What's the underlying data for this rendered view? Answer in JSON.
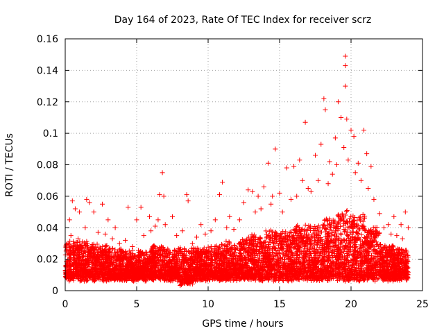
{
  "chart_data": {
    "type": "scatter",
    "title": "Day 164 of 2023, Rate Of TEC Index for receiver scrz",
    "xlabel": "GPS time / hours",
    "ylabel": "ROTI / TECUs",
    "xlim": [
      0,
      25
    ],
    "ylim": [
      0,
      0.16
    ],
    "xticks": [
      0,
      5,
      10,
      15,
      20,
      25
    ],
    "yticks": [
      0,
      0.02,
      0.04,
      0.06,
      0.08,
      0.1,
      0.12,
      0.14,
      0.16
    ],
    "xtick_labels": [
      "0",
      "5",
      "10",
      "15",
      "20",
      "25"
    ],
    "ytick_labels": [
      "0",
      "0.02",
      "0.04",
      "0.06",
      "0.08",
      "0.1",
      "0.12",
      "0.14",
      "0.16"
    ],
    "grid": true,
    "marker": "+",
    "marker_color": "#ff0000",
    "series": [
      {
        "name": "ROTI",
        "points": [
          [
            0.3,
            0.045
          ],
          [
            0.5,
            0.057
          ],
          [
            0.7,
            0.052
          ],
          [
            1.0,
            0.05
          ],
          [
            1.5,
            0.058
          ],
          [
            1.7,
            0.056
          ],
          [
            2.0,
            0.05
          ],
          [
            2.6,
            0.055
          ],
          [
            3.0,
            0.045
          ],
          [
            3.5,
            0.04
          ],
          [
            4.4,
            0.053
          ],
          [
            5.0,
            0.045
          ],
          [
            5.3,
            0.053
          ],
          [
            5.9,
            0.047
          ],
          [
            6.3,
            0.041
          ],
          [
            6.6,
            0.061
          ],
          [
            6.8,
            0.075
          ],
          [
            6.9,
            0.06
          ],
          [
            7.5,
            0.047
          ],
          [
            8.5,
            0.061
          ],
          [
            8.6,
            0.057
          ],
          [
            9.5,
            0.042
          ],
          [
            10.5,
            0.045
          ],
          [
            10.8,
            0.061
          ],
          [
            11.0,
            0.069
          ],
          [
            11.5,
            0.047
          ],
          [
            12.5,
            0.056
          ],
          [
            12.8,
            0.064
          ],
          [
            13.1,
            0.063
          ],
          [
            13.5,
            0.06
          ],
          [
            13.9,
            0.066
          ],
          [
            14.2,
            0.081
          ],
          [
            14.5,
            0.06
          ],
          [
            14.7,
            0.09
          ],
          [
            15.0,
            0.062
          ],
          [
            15.5,
            0.078
          ],
          [
            16.0,
            0.079
          ],
          [
            16.4,
            0.083
          ],
          [
            16.6,
            0.07
          ],
          [
            16.8,
            0.107
          ],
          [
            17.2,
            0.063
          ],
          [
            17.5,
            0.086
          ],
          [
            17.9,
            0.093
          ],
          [
            18.1,
            0.122
          ],
          [
            18.2,
            0.115
          ],
          [
            18.5,
            0.082
          ],
          [
            18.9,
            0.097
          ],
          [
            19.1,
            0.12
          ],
          [
            19.3,
            0.11
          ],
          [
            19.5,
            0.091
          ],
          [
            19.6,
            0.149
          ],
          [
            19.6,
            0.143
          ],
          [
            19.6,
            0.13
          ],
          [
            19.7,
            0.109
          ],
          [
            20.0,
            0.102
          ],
          [
            20.2,
            0.098
          ],
          [
            20.5,
            0.081
          ],
          [
            20.9,
            0.102
          ],
          [
            21.1,
            0.087
          ],
          [
            21.4,
            0.079
          ],
          [
            22.0,
            0.049
          ],
          [
            22.6,
            0.042
          ],
          [
            23.0,
            0.047
          ],
          [
            23.5,
            0.042
          ],
          [
            23.8,
            0.05
          ],
          [
            24.0,
            0.04
          ],
          [
            0.2,
            0.03
          ],
          [
            0.4,
            0.035
          ],
          [
            0.6,
            0.028
          ],
          [
            0.9,
            0.033
          ],
          [
            1.2,
            0.031
          ],
          [
            1.4,
            0.04
          ],
          [
            2.3,
            0.037
          ],
          [
            2.8,
            0.036
          ],
          [
            3.3,
            0.033
          ],
          [
            3.8,
            0.03
          ],
          [
            4.2,
            0.032
          ],
          [
            4.7,
            0.028
          ],
          [
            5.5,
            0.035
          ],
          [
            6.0,
            0.038
          ],
          [
            6.5,
            0.045
          ],
          [
            7.0,
            0.042
          ],
          [
            7.8,
            0.035
          ],
          [
            8.2,
            0.038
          ],
          [
            8.9,
            0.03
          ],
          [
            9.2,
            0.034
          ],
          [
            9.8,
            0.036
          ],
          [
            10.2,
            0.038
          ],
          [
            11.3,
            0.04
          ],
          [
            11.8,
            0.039
          ],
          [
            12.2,
            0.045
          ],
          [
            13.3,
            0.05
          ],
          [
            13.7,
            0.052
          ],
          [
            14.4,
            0.055
          ],
          [
            15.2,
            0.05
          ],
          [
            15.8,
            0.058
          ],
          [
            16.2,
            0.06
          ],
          [
            17.0,
            0.065
          ],
          [
            17.7,
            0.07
          ],
          [
            18.4,
            0.068
          ],
          [
            18.7,
            0.074
          ],
          [
            19.0,
            0.08
          ],
          [
            19.8,
            0.083
          ],
          [
            20.3,
            0.075
          ],
          [
            20.7,
            0.07
          ],
          [
            21.2,
            0.065
          ],
          [
            21.6,
            0.058
          ],
          [
            22.3,
            0.04
          ],
          [
            22.8,
            0.036
          ],
          [
            23.2,
            0.035
          ],
          [
            23.6,
            0.033
          ]
        ]
      }
    ],
    "dense_band": {
      "description": "dense cluster of points covering the full time range",
      "bins": [
        {
          "x0": 0,
          "x1": 1,
          "ymin": 0.008,
          "ymax": 0.03
        },
        {
          "x0": 1,
          "x1": 2,
          "ymin": 0.008,
          "ymax": 0.03
        },
        {
          "x0": 2,
          "x1": 3,
          "ymin": 0.008,
          "ymax": 0.028
        },
        {
          "x0": 3,
          "x1": 4,
          "ymin": 0.008,
          "ymax": 0.026
        },
        {
          "x0": 4,
          "x1": 5,
          "ymin": 0.008,
          "ymax": 0.024
        },
        {
          "x0": 5,
          "x1": 6,
          "ymin": 0.008,
          "ymax": 0.024
        },
        {
          "x0": 6,
          "x1": 7,
          "ymin": 0.008,
          "ymax": 0.028
        },
        {
          "x0": 7,
          "x1": 8,
          "ymin": 0.008,
          "ymax": 0.026
        },
        {
          "x0": 8,
          "x1": 9,
          "ymin": 0.005,
          "ymax": 0.026
        },
        {
          "x0": 9,
          "x1": 10,
          "ymin": 0.008,
          "ymax": 0.026
        },
        {
          "x0": 10,
          "x1": 11,
          "ymin": 0.008,
          "ymax": 0.028
        },
        {
          "x0": 11,
          "x1": 12,
          "ymin": 0.008,
          "ymax": 0.03
        },
        {
          "x0": 12,
          "x1": 13,
          "ymin": 0.008,
          "ymax": 0.032
        },
        {
          "x0": 13,
          "x1": 14,
          "ymin": 0.008,
          "ymax": 0.035
        },
        {
          "x0": 14,
          "x1": 15,
          "ymin": 0.008,
          "ymax": 0.037
        },
        {
          "x0": 15,
          "x1": 16,
          "ymin": 0.008,
          "ymax": 0.038
        },
        {
          "x0": 16,
          "x1": 17,
          "ymin": 0.008,
          "ymax": 0.04
        },
        {
          "x0": 17,
          "x1": 18,
          "ymin": 0.008,
          "ymax": 0.042
        },
        {
          "x0": 18,
          "x1": 19,
          "ymin": 0.008,
          "ymax": 0.045
        },
        {
          "x0": 19,
          "x1": 20,
          "ymin": 0.008,
          "ymax": 0.05
        },
        {
          "x0": 20,
          "x1": 21,
          "ymin": 0.008,
          "ymax": 0.048
        },
        {
          "x0": 21,
          "x1": 22,
          "ymin": 0.008,
          "ymax": 0.04
        },
        {
          "x0": 22,
          "x1": 23,
          "ymin": 0.008,
          "ymax": 0.028
        },
        {
          "x0": 23,
          "x1": 24,
          "ymin": 0.008,
          "ymax": 0.026
        }
      ]
    }
  }
}
